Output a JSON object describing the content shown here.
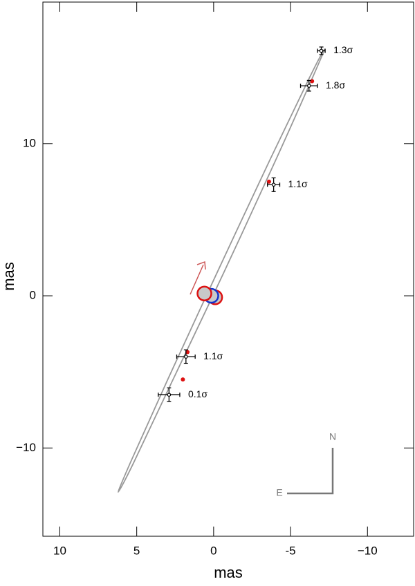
{
  "chart_data": {
    "type": "scatter",
    "xlabel": "mas",
    "ylabel": "mas",
    "xlim": [
      11.1,
      -13.0
    ],
    "ylim": [
      -15.8,
      19.3
    ],
    "xticks": [
      10,
      5,
      0,
      -5,
      {
        "value": -10,
        "label": "−10"
      }
    ],
    "yticks": [
      {
        "value": -10,
        "label": "−10"
      },
      0,
      10
    ],
    "orbit": {
      "color": "#999999",
      "x": [
        -7.2,
        -6.21,
        -3.69,
        -0.32,
        3.01,
        5.39,
        6.2,
        5.21,
        2.7,
        -0.68,
        -4.01,
        -6.39
      ],
      "y": [
        16.2,
        14.29,
        9.0,
        1.73,
        -5.56,
        -10.91,
        -12.9,
        -10.99,
        -5.63,
        1.57,
        8.86,
        14.25
      ]
    },
    "points": {
      "color": "#000000",
      "x": [
        -7.0,
        -6.2,
        -3.9,
        1.8,
        2.9
      ],
      "y": [
        16.1,
        13.8,
        7.3,
        -4.0,
        -6.5
      ],
      "xerr": [
        0.25,
        0.55,
        0.4,
        0.6,
        0.7
      ],
      "yerr": [
        0.25,
        0.35,
        0.45,
        0.45,
        0.45
      ],
      "labels": [
        "1.3σ",
        "1.8σ",
        "1.1σ",
        "1.1σ",
        "0.1σ"
      ]
    },
    "model": {
      "color": "#dd1111",
      "x": [
        -6.4,
        -3.6,
        1.7,
        2.0
      ],
      "y": [
        14.1,
        7.5,
        -3.7,
        -5.5
      ]
    },
    "stars": {
      "fill": "#c8c8c8",
      "x": [
        -0.1,
        0.15,
        0.6
      ],
      "y": [
        -0.1,
        0.0,
        0.15
      ],
      "colors": [
        "#dd1111",
        "#1133cc",
        "#dd1111"
      ]
    },
    "compass": {
      "north": "N",
      "east": "E"
    }
  }
}
